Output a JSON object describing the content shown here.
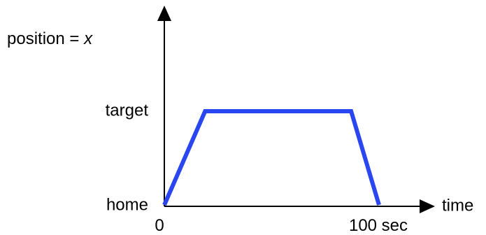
{
  "chart_data": {
    "type": "line",
    "title": "",
    "ylabel": "position = ",
    "ylabel_var": "x",
    "xlabel": "time",
    "x_ticks": [
      {
        "value": 0,
        "label": "0"
      },
      {
        "value": 100,
        "label": "100 sec"
      }
    ],
    "y_ticks": [
      {
        "value": 0,
        "label": "home"
      },
      {
        "value": 1,
        "label": "target"
      }
    ],
    "xlim": [
      0,
      100
    ],
    "ylim": [
      0,
      1
    ],
    "grid": false,
    "legend": "none",
    "series": [
      {
        "color": "#2a46f0",
        "x": [
          0,
          19,
          87,
          100
        ],
        "y": [
          0,
          1,
          1,
          0
        ]
      }
    ],
    "axis_color": "#000000"
  }
}
